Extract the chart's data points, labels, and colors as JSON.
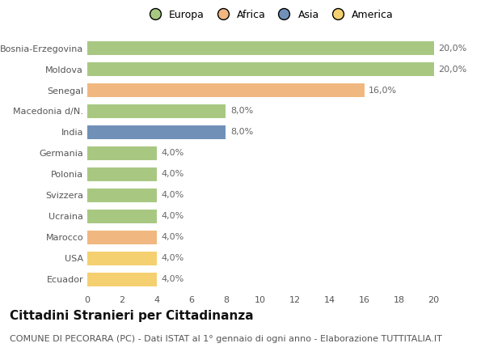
{
  "categories": [
    "Bosnia-Erzegovina",
    "Moldova",
    "Senegal",
    "Macedonia d/N.",
    "India",
    "Germania",
    "Polonia",
    "Svizzera",
    "Ucraina",
    "Marocco",
    "USA",
    "Ecuador"
  ],
  "values": [
    20.0,
    20.0,
    16.0,
    8.0,
    8.0,
    4.0,
    4.0,
    4.0,
    4.0,
    4.0,
    4.0,
    4.0
  ],
  "colors": [
    "#a8c882",
    "#a8c882",
    "#f0b880",
    "#a8c882",
    "#7090b8",
    "#a8c882",
    "#a8c882",
    "#a8c882",
    "#a8c882",
    "#f0b880",
    "#f5d070",
    "#f5d070"
  ],
  "legend_labels": [
    "Europa",
    "Africa",
    "Asia",
    "America"
  ],
  "legend_colors": [
    "#a8c882",
    "#f0b880",
    "#7090b8",
    "#f5d070"
  ],
  "xlim": [
    0,
    21
  ],
  "xticks": [
    0,
    2,
    4,
    6,
    8,
    10,
    12,
    14,
    16,
    18,
    20
  ],
  "title": "Cittadini Stranieri per Cittadinanza",
  "subtitle": "COMUNE DI PECORARA (PC) - Dati ISTAT al 1° gennaio di ogni anno - Elaborazione TUTTITALIA.IT",
  "background_color": "#ffffff",
  "bar_height": 0.65,
  "title_fontsize": 11,
  "subtitle_fontsize": 8,
  "label_fontsize": 8,
  "tick_fontsize": 8,
  "legend_fontsize": 9
}
